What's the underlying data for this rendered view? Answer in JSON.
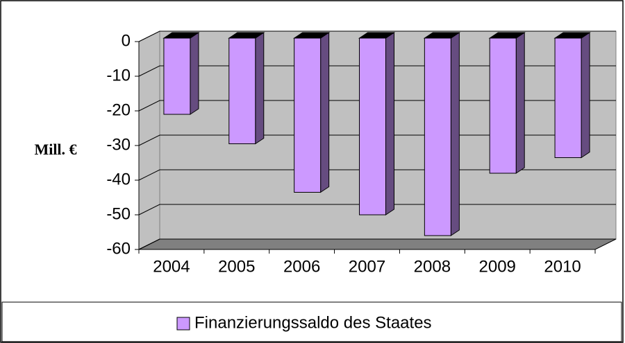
{
  "chart_data": {
    "type": "bar",
    "y_label": "Mill. €",
    "categories": [
      "2004",
      "2005",
      "2006",
      "2007",
      "2008",
      "2009",
      "2010"
    ],
    "series": [
      {
        "name": "Finanzierungssaldo des Staates",
        "color": "#cc99ff",
        "values": [
          -22,
          -30.5,
          -44.5,
          -51,
          -57,
          -39,
          -34.5
        ]
      }
    ],
    "ylim": [
      -60,
      0
    ],
    "yticks": [
      0,
      -10,
      -20,
      -30,
      -40,
      -50,
      -60
    ],
    "grid": true,
    "legend": "bottom"
  }
}
